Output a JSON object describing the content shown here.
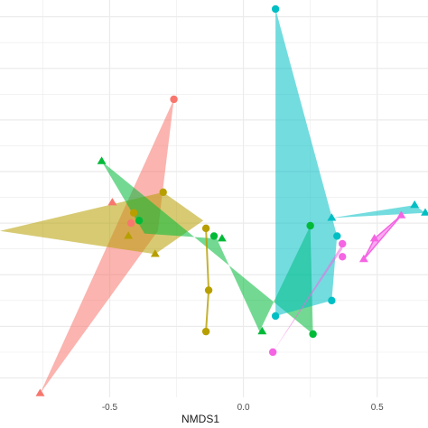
{
  "chart_data": {
    "type": "scatter",
    "title": "",
    "xlabel": "NMDS1",
    "ylabel": "",
    "xlim": [
      -0.91,
      0.69
    ],
    "ylim": [
      -0.575,
      0.965
    ],
    "xticks": [
      -0.5,
      0.0,
      0.5
    ],
    "xtick_labels": [
      "-0.5",
      "0.0",
      "0.5"
    ],
    "grid": true,
    "background": "#ffffff",
    "grid_color": "#ebebeb",
    "legend": "none",
    "series": [
      {
        "color": "#F8766D",
        "hull": [
          [
            -0.26,
            0.58
          ],
          [
            -0.76,
            -0.56
          ],
          [
            -0.32,
            0.07
          ]
        ],
        "points": [
          {
            "x": -0.26,
            "y": 0.58,
            "shape": "circle"
          },
          {
            "x": -0.49,
            "y": 0.18,
            "shape": "triangle"
          },
          {
            "x": -0.42,
            "y": 0.1,
            "shape": "circle"
          },
          {
            "x": -0.76,
            "y": -0.56,
            "shape": "triangle"
          }
        ]
      },
      {
        "color": "#B79F00",
        "hull": [
          [
            -0.3,
            0.22
          ],
          [
            -0.91,
            0.07
          ],
          [
            -0.33,
            -0.02
          ],
          [
            -0.15,
            0.11
          ]
        ],
        "points": [
          {
            "x": -0.3,
            "y": 0.22,
            "shape": "circle"
          },
          {
            "x": -0.41,
            "y": 0.14,
            "shape": "circle"
          },
          {
            "x": -0.33,
            "y": -0.02,
            "shape": "triangle"
          },
          {
            "x": -0.43,
            "y": 0.05,
            "shape": "triangle"
          },
          {
            "x": -0.14,
            "y": 0.08,
            "shape": "circle"
          },
          {
            "x": -0.13,
            "y": -0.16,
            "shape": "circle"
          },
          {
            "x": -0.14,
            "y": -0.32,
            "shape": "circle"
          }
        ]
      },
      {
        "color": "#00BA38",
        "hull": [
          [
            -0.53,
            0.34
          ],
          [
            -0.37,
            0.06
          ],
          [
            -0.1,
            0.04
          ],
          [
            0.06,
            -0.32
          ],
          [
            0.25,
            0.09
          ],
          [
            0.26,
            -0.33
          ]
        ],
        "points": [
          {
            "x": -0.53,
            "y": 0.34,
            "shape": "triangle"
          },
          {
            "x": -0.39,
            "y": 0.11,
            "shape": "circle"
          },
          {
            "x": -0.11,
            "y": 0.05,
            "shape": "circle"
          },
          {
            "x": -0.08,
            "y": 0.04,
            "shape": "triangle"
          },
          {
            "x": 0.07,
            "y": -0.32,
            "shape": "triangle"
          },
          {
            "x": 0.25,
            "y": 0.09,
            "shape": "circle"
          },
          {
            "x": 0.26,
            "y": -0.33,
            "shape": "circle"
          }
        ]
      },
      {
        "color": "#00BFC4",
        "hull": [
          [
            0.12,
            0.93
          ],
          [
            0.12,
            -0.26
          ],
          [
            0.33,
            -0.2
          ],
          [
            0.35,
            0.05
          ]
        ],
        "points": [
          {
            "x": 0.12,
            "y": 0.93,
            "shape": "circle"
          },
          {
            "x": 0.35,
            "y": 0.05,
            "shape": "circle"
          },
          {
            "x": 0.12,
            "y": -0.26,
            "shape": "circle"
          },
          {
            "x": 0.33,
            "y": -0.2,
            "shape": "circle"
          },
          {
            "x": 0.33,
            "y": 0.12,
            "shape": "triangle"
          },
          {
            "x": 0.64,
            "y": 0.17,
            "shape": "triangle"
          },
          {
            "x": 0.68,
            "y": 0.14,
            "shape": "triangle"
          }
        ]
      },
      {
        "color": "#F564E3",
        "hull": [
          [
            0.37,
            0.0
          ],
          [
            0.11,
            -0.4
          ],
          [
            0.37,
            0.02
          ]
        ],
        "points": [
          {
            "x": 0.37,
            "y": 0.02,
            "shape": "circle"
          },
          {
            "x": 0.37,
            "y": -0.03,
            "shape": "circle"
          },
          {
            "x": 0.11,
            "y": -0.4,
            "shape": "circle"
          },
          {
            "x": 0.49,
            "y": 0.04,
            "shape": "triangle"
          },
          {
            "x": 0.45,
            "y": -0.04,
            "shape": "triangle"
          },
          {
            "x": 0.59,
            "y": 0.13,
            "shape": "triangle"
          }
        ]
      }
    ]
  }
}
